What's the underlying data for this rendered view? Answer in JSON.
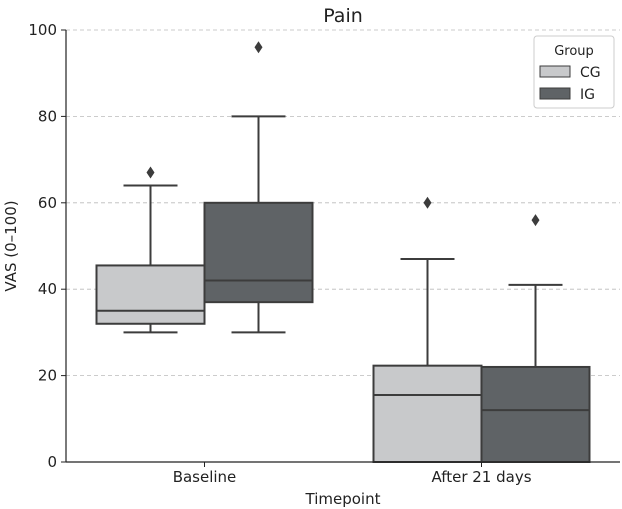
{
  "chart_data": {
    "type": "box",
    "title": "Pain",
    "xlabel": "Timepoint",
    "ylabel": "VAS (0–100)",
    "ylim": [
      0,
      100
    ],
    "yticks": [
      0,
      20,
      40,
      60,
      80,
      100
    ],
    "grid": "horizontal dashed",
    "categories": [
      "Baseline",
      "After 21 days"
    ],
    "legend": {
      "title": "Group",
      "placement": "top-right"
    },
    "series": [
      {
        "name": "CG",
        "color": "#c8c9cb",
        "boxes": [
          {
            "whisker_low": 30,
            "q1": 32,
            "median": 35,
            "q3": 45.5,
            "whisker_high": 64,
            "outliers": [
              67
            ]
          },
          {
            "whisker_low": 0,
            "q1": 0,
            "median": 15.5,
            "q3": 22.3,
            "whisker_high": 47,
            "outliers": [
              60
            ]
          }
        ]
      },
      {
        "name": "IG",
        "color": "#5f6366",
        "boxes": [
          {
            "whisker_low": 30,
            "q1": 37,
            "median": 42,
            "q3": 60,
            "whisker_high": 80,
            "outliers": [
              96
            ]
          },
          {
            "whisker_low": 0,
            "q1": 0,
            "median": 12,
            "q3": 22,
            "whisker_high": 41,
            "outliers": [
              56
            ]
          }
        ]
      }
    ]
  }
}
